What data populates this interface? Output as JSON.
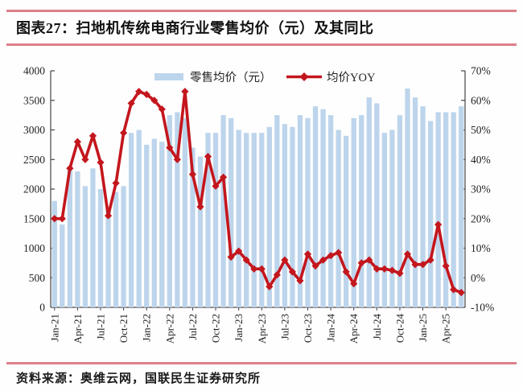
{
  "page": {
    "title": "图表27：扫地机传统电商行业零售均价（元）及其同比",
    "source": "资料来源：奥维云网，国联民生证券研究所"
  },
  "colors": {
    "rule_pink": "#dd7f8b",
    "bar_blue": "#bdd5ec",
    "line_red": "#c4161d",
    "axis_line": "#444444",
    "axis_text": "#222222"
  },
  "chart_data": {
    "type": "bar",
    "subtype": "bar+line combo, monthly",
    "title": "扫地机传统电商行业零售均价（元）及其同比",
    "grid": false,
    "legend_position": "top",
    "categories": [
      "Jan-21",
      "Feb-21",
      "Mar-21",
      "Apr-21",
      "May-21",
      "Jun-21",
      "Jul-21",
      "Aug-21",
      "Sep-21",
      "Oct-21",
      "Nov-21",
      "Dec-21",
      "Jan-22",
      "Feb-22",
      "Mar-22",
      "Apr-22",
      "May-22",
      "Jun-22",
      "Jul-22",
      "Aug-22",
      "Sep-22",
      "Oct-22",
      "Nov-22",
      "Dec-22",
      "Jan-23",
      "Feb-23",
      "Mar-23",
      "Apr-23",
      "May-23",
      "Jun-23",
      "Jul-23",
      "Aug-23",
      "Sep-23",
      "Oct-23",
      "Nov-23",
      "Dec-23",
      "Jan-24",
      "Feb-24",
      "Mar-24",
      "Apr-24",
      "May-24",
      "Jun-24",
      "Jul-24",
      "Aug-24",
      "Sep-24",
      "Oct-24",
      "Nov-24",
      "Dec-24",
      "Jan-25",
      "Feb-25",
      "Mar-25",
      "Apr-25",
      "May-25",
      "Jun-25"
    ],
    "x_tick_every": 3,
    "series": [
      {
        "name": "零售均价（元）",
        "type": "bar",
        "axis": "left",
        "values": [
          1800,
          1400,
          2350,
          2300,
          2050,
          2350,
          2000,
          1700,
          1950,
          2050,
          2950,
          3000,
          2750,
          2850,
          2800,
          3250,
          3300,
          3200,
          2700,
          2550,
          2950,
          2950,
          3250,
          3200,
          3000,
          2950,
          2950,
          2950,
          3050,
          3250,
          3100,
          3050,
          3250,
          3200,
          3400,
          3350,
          3250,
          3000,
          2900,
          3200,
          3250,
          3550,
          3450,
          2950,
          3000,
          3250,
          3700,
          3550,
          3400,
          3150,
          3300,
          3300,
          3300,
          3400
        ]
      },
      {
        "name": "均价YOY",
        "type": "line",
        "axis": "right",
        "values": [
          20,
          20,
          37,
          46,
          40,
          48,
          39,
          21,
          32,
          49,
          59,
          63,
          62,
          60,
          57,
          44,
          40,
          63,
          35,
          24,
          41,
          31,
          34,
          7,
          9,
          6,
          3,
          3,
          -3,
          1,
          6,
          2,
          -1,
          8,
          4,
          6,
          7.5,
          8.5,
          2,
          -2,
          5,
          6,
          3,
          3,
          2.5,
          1.5,
          8,
          4.5,
          4.5,
          6,
          18,
          4,
          -4,
          -5
        ]
      }
    ],
    "left_axis": {
      "min": 0,
      "max": 4000,
      "step": 500,
      "labels": [
        "0",
        "500",
        "1000",
        "1500",
        "2000",
        "2500",
        "3000",
        "3500",
        "4000"
      ]
    },
    "right_axis": {
      "min": -10,
      "max": 70,
      "step": 10,
      "labels": [
        "-10%",
        "0%",
        "10%",
        "20%",
        "30%",
        "40%",
        "50%",
        "60%",
        "70%"
      ]
    }
  }
}
